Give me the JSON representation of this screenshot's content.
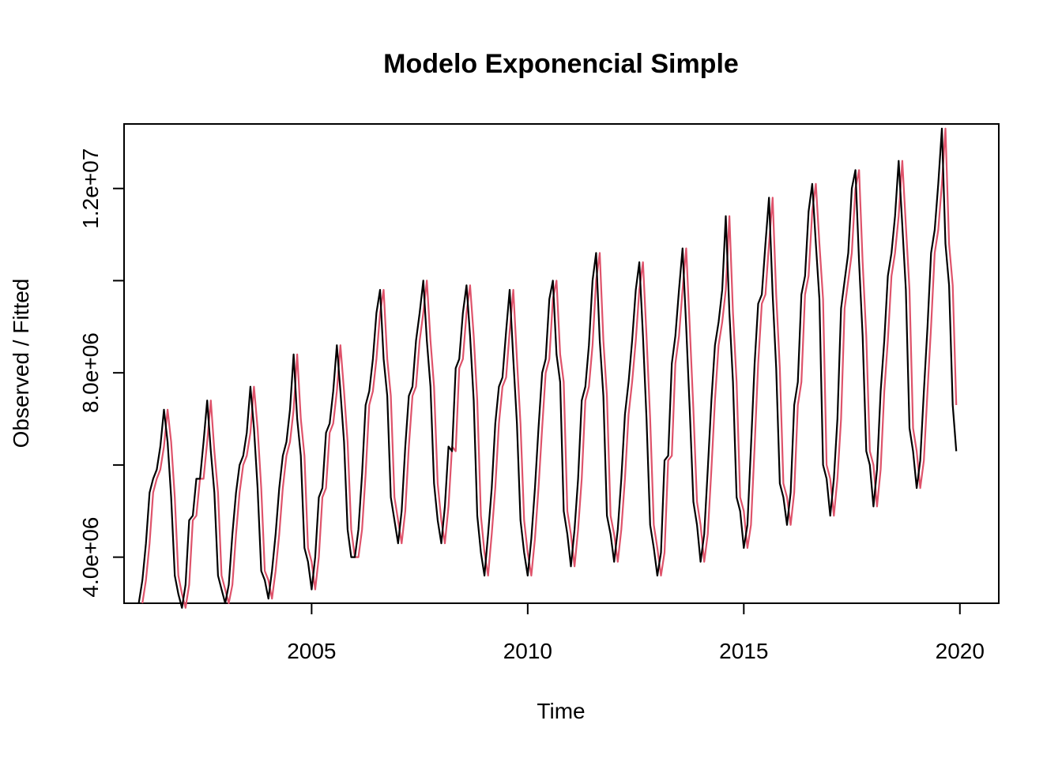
{
  "chart_data": {
    "type": "line",
    "title": "Modelo Exponencial Simple",
    "xlabel": "Time",
    "ylabel": "Observed / Fitted",
    "xlim": [
      2000.66,
      2020.9
    ],
    "ylim": [
      3000000,
      13400000
    ],
    "x_ticks": [
      2005,
      2010,
      2015,
      2020
    ],
    "x_tick_labels": [
      "2005",
      "2010",
      "2015",
      "2020"
    ],
    "y_ticks": [
      4000000,
      8000000,
      12000000
    ],
    "y_tick_labels": [
      "4.0e+06",
      "8.0e+06",
      "1.2e+07"
    ],
    "y_minor_ticks": [
      6000000,
      10000000
    ],
    "grid": false,
    "legend": "none",
    "x_start": 2001,
    "x_step": 0.0833333,
    "series": [
      {
        "color": "#000000",
        "values": [
          3000000,
          3500000,
          4300000,
          5400000,
          5700000,
          5900000,
          6400000,
          7200000,
          6500000,
          5300000,
          3600000,
          3200000,
          2900000,
          3400000,
          4800000,
          4900000,
          5700000,
          5700000,
          6500000,
          7400000,
          6300000,
          5400000,
          3600000,
          3300000,
          3000000,
          3400000,
          4500000,
          5400000,
          6000000,
          6200000,
          6700000,
          7700000,
          6800000,
          5500000,
          3700000,
          3500000,
          3100000,
          3700000,
          4500000,
          5500000,
          6200000,
          6500000,
          7200000,
          8400000,
          7000000,
          6200000,
          4200000,
          3900000,
          3300000,
          4000000,
          5300000,
          5500000,
          6700000,
          6900000,
          7600000,
          8600000,
          7600000,
          6500000,
          4600000,
          4000000,
          4000000,
          4600000,
          5800000,
          7300000,
          7600000,
          8300000,
          9300000,
          9800000,
          8300000,
          7500000,
          5300000,
          4800000,
          4300000,
          5000000,
          6400000,
          7500000,
          7700000,
          8700000,
          9300000,
          10000000,
          8700000,
          7700000,
          5600000,
          4800000,
          4300000,
          5100000,
          6400000,
          6300000,
          8100000,
          8300000,
          9300000,
          9900000,
          8800000,
          7400000,
          4900000,
          4100000,
          3600000,
          4500000,
          5500000,
          6900000,
          7700000,
          7900000,
          8900000,
          9800000,
          8300000,
          6900000,
          4800000,
          4100000,
          3600000,
          4400000,
          5500000,
          6800000,
          8000000,
          8300000,
          9600000,
          10000000,
          8400000,
          7800000,
          5000000,
          4500000,
          3800000,
          4600000,
          5700000,
          7400000,
          7700000,
          8600000,
          10000000,
          10600000,
          8700000,
          7500000,
          4900000,
          4500000,
          3900000,
          4600000,
          5700000,
          7100000,
          7800000,
          8700000,
          9800000,
          10400000,
          8800000,
          7000000,
          4700000,
          4200000,
          3600000,
          4100000,
          6100000,
          6200000,
          8200000,
          8800000,
          9800000,
          10700000,
          9000000,
          7200000,
          5200000,
          4700000,
          3900000,
          4500000,
          5900000,
          7400000,
          8600000,
          9100000,
          9800000,
          11400000,
          9300000,
          7800000,
          5300000,
          5000000,
          4200000,
          4700000,
          6400000,
          8200000,
          9500000,
          9700000,
          10800000,
          11800000,
          9700000,
          8100000,
          5600000,
          5300000,
          4700000,
          5400000,
          7300000,
          7800000,
          9700000,
          10100000,
          11500000,
          12100000,
          10800000,
          9600000,
          6000000,
          5700000,
          4900000,
          5700000,
          7000000,
          9400000,
          10000000,
          10600000,
          12000000,
          12400000,
          10400000,
          8800000,
          6300000,
          6000000,
          5100000,
          5900000,
          7600000,
          8700000,
          10100000,
          10600000,
          11400000,
          12600000,
          11200000,
          9800000,
          6800000,
          6300000,
          5500000,
          6100000,
          7600000,
          9000000,
          10600000,
          11100000,
          12100000,
          13300000,
          10800000,
          9900000,
          7300000,
          6300000
        ]
      },
      {
        "color": "#DF536B",
        "values": [
          3000000,
          3500000,
          4300000,
          5400000,
          5700000,
          5900000,
          6400000,
          7200000,
          6500000,
          5300000,
          3600000,
          3200000,
          2900000,
          3400000,
          4800000,
          4900000,
          5700000,
          5700000,
          6500000,
          7400000,
          6300000,
          5400000,
          3600000,
          3300000,
          3000000,
          3400000,
          4500000,
          5400000,
          6000000,
          6200000,
          6700000,
          7700000,
          6800000,
          5500000,
          3700000,
          3500000,
          3100000,
          3700000,
          4500000,
          5500000,
          6200000,
          6500000,
          7200000,
          8400000,
          7000000,
          6200000,
          4200000,
          3900000,
          3300000,
          4000000,
          5300000,
          5500000,
          6700000,
          6900000,
          7600000,
          8600000,
          7600000,
          6500000,
          4600000,
          4000000,
          4000000,
          4600000,
          5800000,
          7300000,
          7600000,
          8300000,
          9300000,
          9800000,
          8300000,
          7500000,
          5300000,
          4800000,
          4300000,
          5000000,
          6400000,
          7500000,
          7700000,
          8700000,
          9300000,
          10000000,
          8700000,
          7700000,
          5600000,
          4800000,
          4300000,
          5100000,
          6400000,
          6300000,
          8100000,
          8300000,
          9300000,
          9900000,
          8800000,
          7400000,
          4900000,
          4100000,
          3600000,
          4500000,
          5500000,
          6900000,
          7700000,
          7900000,
          8900000,
          9800000,
          8300000,
          6900000,
          4800000,
          4100000,
          3600000,
          4400000,
          5500000,
          6800000,
          8000000,
          8300000,
          9600000,
          10000000,
          8400000,
          7800000,
          5000000,
          4500000,
          3800000,
          4600000,
          5700000,
          7400000,
          7700000,
          8600000,
          10000000,
          10600000,
          8700000,
          7500000,
          4900000,
          4500000,
          3900000,
          4600000,
          5700000,
          7100000,
          7800000,
          8700000,
          9800000,
          10400000,
          8800000,
          7000000,
          4700000,
          4200000,
          3600000,
          4100000,
          6100000,
          6200000,
          8200000,
          8800000,
          9800000,
          10700000,
          9000000,
          7200000,
          5200000,
          4700000,
          3900000,
          4500000,
          5900000,
          7400000,
          8600000,
          9100000,
          9800000,
          11400000,
          9300000,
          7800000,
          5300000,
          5000000,
          4200000,
          4700000,
          6400000,
          8200000,
          9500000,
          9700000,
          10800000,
          11800000,
          9700000,
          8100000,
          5600000,
          5300000,
          4700000,
          5400000,
          7300000,
          7800000,
          9700000,
          10100000,
          11500000,
          12100000,
          10800000,
          9600000,
          6000000,
          5700000,
          4900000,
          5700000,
          7000000,
          9400000,
          10000000,
          10600000,
          12000000,
          12400000,
          10400000,
          8800000,
          6300000,
          6000000,
          5100000,
          5900000,
          7600000,
          8700000,
          10100000,
          10600000,
          11400000,
          12600000,
          11200000,
          9800000,
          6800000,
          6300000,
          5500000,
          6100000,
          7600000,
          9000000,
          10600000,
          11100000,
          12100000,
          13300000,
          10800000,
          9900000,
          7300000
        ]
      }
    ]
  }
}
